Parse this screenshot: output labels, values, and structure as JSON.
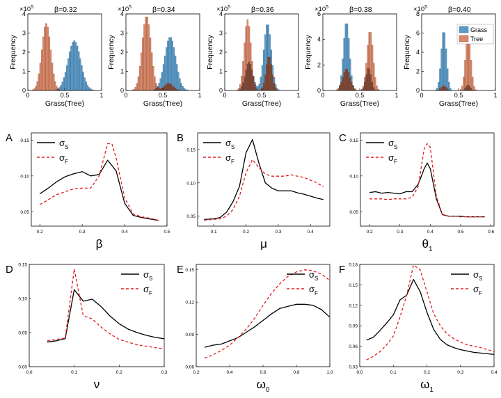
{
  "histograms": {
    "ylabel": "Frequency",
    "xlabel": "Grass(Tree)",
    "legend": {
      "grass": "Grass",
      "tree": "Tree"
    },
    "colors": {
      "grass": "#5b9bc8",
      "tree": "#d9896a",
      "overlap": "#6b3a2a"
    }
  },
  "chart_data": [
    {
      "type": "histogram",
      "title": "β=0.32",
      "scale_base": "×10",
      "scale_exp": "5",
      "xlim": [
        0,
        1
      ],
      "xticks": [
        0,
        0.5,
        1
      ],
      "xticklabels": [
        "0",
        "0.5",
        "1"
      ],
      "ylim": [
        0,
        4
      ],
      "yticks": [
        0,
        1,
        2,
        3,
        4
      ],
      "yticklabels": [
        "0",
        "1",
        "2",
        "3",
        "4"
      ],
      "series": [
        {
          "name": "Grass",
          "components": [
            {
              "mu": 0.63,
              "sd": 0.085,
              "peak": 2.6
            }
          ]
        },
        {
          "name": "Tree",
          "components": [
            {
              "mu": 0.25,
              "sd": 0.06,
              "peak": 3.5
            }
          ]
        }
      ]
    },
    {
      "type": "histogram",
      "title": "β=0.34",
      "scale_base": "×10",
      "scale_exp": "5",
      "xlim": [
        0,
        1
      ],
      "xticks": [
        0,
        0.5,
        1
      ],
      "xticklabels": [
        "0",
        "0.5",
        "1"
      ],
      "ylim": [
        0,
        4
      ],
      "yticks": [
        0,
        1,
        2,
        3,
        4
      ],
      "yticklabels": [
        "0",
        "1",
        "2",
        "3",
        "4"
      ],
      "series": [
        {
          "name": "Grass",
          "components": [
            {
              "mu": 0.6,
              "sd": 0.075,
              "peak": 2.8
            }
          ]
        },
        {
          "name": "Tree",
          "components": [
            {
              "mu": 0.28,
              "sd": 0.06,
              "peak": 3.9
            },
            {
              "mu": 0.58,
              "sd": 0.06,
              "peak": 0.38
            }
          ]
        }
      ]
    },
    {
      "type": "histogram",
      "title": "β=0.36",
      "scale_base": "×10",
      "scale_exp": "5",
      "xlim": [
        0,
        1
      ],
      "xticks": [
        0,
        0.5,
        1
      ],
      "xticklabels": [
        "0",
        "0.5",
        "1"
      ],
      "ylim": [
        0,
        4
      ],
      "yticks": [
        0,
        1,
        2,
        3,
        4
      ],
      "yticklabels": [
        "0",
        "1",
        "2",
        "3",
        "4"
      ],
      "series": [
        {
          "name": "Grass",
          "components": [
            {
              "mu": 0.58,
              "sd": 0.05,
              "peak": 3.5
            },
            {
              "mu": 0.33,
              "sd": 0.05,
              "peak": 1.5
            }
          ]
        },
        {
          "name": "Tree",
          "components": [
            {
              "mu": 0.31,
              "sd": 0.045,
              "peak": 3.7
            },
            {
              "mu": 0.6,
              "sd": 0.04,
              "peak": 1.8
            }
          ]
        }
      ]
    },
    {
      "type": "histogram",
      "title": "β=0.38",
      "scale_base": "×10",
      "scale_exp": "5",
      "xlim": [
        0,
        1
      ],
      "xticks": [
        0,
        0.5,
        1
      ],
      "xticklabels": [
        "0",
        "0.5",
        "1"
      ],
      "ylim": [
        0,
        6
      ],
      "yticks": [
        0,
        2,
        4,
        6
      ],
      "yticklabels": [
        "0",
        "2",
        "4",
        "6"
      ],
      "series": [
        {
          "name": "Grass",
          "components": [
            {
              "mu": 0.32,
              "sd": 0.04,
              "peak": 5.4
            },
            {
              "mu": 0.62,
              "sd": 0.035,
              "peak": 1.8
            }
          ]
        },
        {
          "name": "Tree",
          "components": [
            {
              "mu": 0.64,
              "sd": 0.04,
              "peak": 4.7
            },
            {
              "mu": 0.32,
              "sd": 0.05,
              "peak": 1.7
            }
          ]
        }
      ]
    },
    {
      "type": "histogram",
      "title": "β=0.40",
      "scale_base": "×10",
      "scale_exp": "5",
      "xlim": [
        0,
        1
      ],
      "xticks": [
        0,
        0.5,
        1
      ],
      "xticklabels": [
        "0",
        "0.5",
        "1"
      ],
      "ylim": [
        0,
        8
      ],
      "yticks": [
        0,
        2,
        4,
        6,
        8
      ],
      "yticklabels": [
        "0",
        "2",
        "4",
        "6",
        "8"
      ],
      "series": [
        {
          "name": "Grass",
          "components": [
            {
              "mu": 0.3,
              "sd": 0.035,
              "peak": 6.3
            },
            {
              "mu": 0.63,
              "sd": 0.03,
              "peak": 0.6
            }
          ]
        },
        {
          "name": "Tree",
          "components": [
            {
              "mu": 0.63,
              "sd": 0.035,
              "peak": 6.1
            },
            {
              "mu": 0.3,
              "sd": 0.035,
              "peak": 0.5
            }
          ]
        }
      ],
      "legend": [
        "Grass",
        "Tree"
      ]
    },
    {
      "type": "line",
      "panel": "A",
      "xlabel": "β",
      "xlabel_sub": "",
      "xlim": [
        0.18,
        0.5
      ],
      "xticks": [
        0.2,
        0.3,
        0.4,
        0.5
      ],
      "xticklabels": [
        "0.2",
        "0.3",
        "0.4",
        "0.5"
      ],
      "ylim": [
        0.03,
        0.16
      ],
      "yticks": [
        0.05,
        0.1,
        0.15
      ],
      "yticklabels": [
        "0.05",
        "0.10",
        "0.15"
      ],
      "legend": [
        {
          "name": "σ",
          "sub": "S"
        },
        {
          "name": "σ",
          "sub": "F"
        }
      ],
      "series": [
        {
          "name": "σS",
          "x": [
            0.2,
            0.22,
            0.24,
            0.26,
            0.28,
            0.3,
            0.32,
            0.34,
            0.36,
            0.38,
            0.4,
            0.42,
            0.44,
            0.46,
            0.48
          ],
          "y": [
            0.075,
            0.083,
            0.092,
            0.099,
            0.103,
            0.106,
            0.1,
            0.102,
            0.122,
            0.107,
            0.062,
            0.045,
            0.042,
            0.04,
            0.038
          ]
        },
        {
          "name": "σF",
          "x": [
            0.2,
            0.22,
            0.24,
            0.26,
            0.28,
            0.3,
            0.32,
            0.34,
            0.36,
            0.37,
            0.38,
            0.4,
            0.42,
            0.44,
            0.46,
            0.48
          ],
          "y": [
            0.06,
            0.067,
            0.074,
            0.078,
            0.082,
            0.083,
            0.083,
            0.1,
            0.145,
            0.145,
            0.125,
            0.07,
            0.047,
            0.043,
            0.041,
            0.038
          ]
        }
      ]
    },
    {
      "type": "line",
      "panel": "B",
      "xlabel": "μ",
      "xlabel_sub": "",
      "xlim": [
        0.05,
        0.46
      ],
      "xticks": [
        0.1,
        0.2,
        0.3,
        0.4
      ],
      "xticklabels": [
        "0.1",
        "0.2",
        "0.3",
        "0.4"
      ],
      "ylim": [
        0.035,
        0.175
      ],
      "yticks": [
        0.05,
        0.1,
        0.15
      ],
      "yticklabels": [
        "0.05",
        "0.10",
        "0.15"
      ],
      "legend": [
        {
          "name": "σ",
          "sub": "S"
        },
        {
          "name": "σ",
          "sub": "F"
        }
      ],
      "series": [
        {
          "name": "σS",
          "x": [
            0.07,
            0.1,
            0.12,
            0.14,
            0.16,
            0.18,
            0.2,
            0.22,
            0.24,
            0.26,
            0.28,
            0.3,
            0.32,
            0.34,
            0.36,
            0.38,
            0.4,
            0.42,
            0.44
          ],
          "y": [
            0.045,
            0.046,
            0.048,
            0.056,
            0.072,
            0.095,
            0.145,
            0.165,
            0.13,
            0.1,
            0.092,
            0.088,
            0.088,
            0.088,
            0.085,
            0.083,
            0.08,
            0.077,
            0.075
          ]
        },
        {
          "name": "σF",
          "x": [
            0.07,
            0.1,
            0.12,
            0.14,
            0.16,
            0.18,
            0.2,
            0.22,
            0.24,
            0.26,
            0.28,
            0.3,
            0.32,
            0.34,
            0.36,
            0.38,
            0.4,
            0.42,
            0.44
          ],
          "y": [
            0.044,
            0.045,
            0.046,
            0.05,
            0.06,
            0.08,
            0.115,
            0.135,
            0.123,
            0.113,
            0.11,
            0.11,
            0.11,
            0.112,
            0.11,
            0.108,
            0.104,
            0.1,
            0.094
          ]
        }
      ]
    },
    {
      "type": "line",
      "panel": "C",
      "xlabel": "θ",
      "xlabel_sub": "1",
      "xlim": [
        0.17,
        0.61
      ],
      "xticks": [
        0.2,
        0.3,
        0.4,
        0.5,
        0.6
      ],
      "xticklabels": [
        "0.2",
        "0.3",
        "0.4",
        "0.5",
        "0.6"
      ],
      "ylim": [
        0.03,
        0.16
      ],
      "yticks": [
        0.05,
        0.1,
        0.15
      ],
      "yticklabels": [
        "0.05",
        "0.10",
        "0.15"
      ],
      "legend": [
        {
          "name": "σ",
          "sub": "S"
        },
        {
          "name": "σ",
          "sub": "F"
        }
      ],
      "series": [
        {
          "name": "σS",
          "x": [
            0.2,
            0.22,
            0.24,
            0.26,
            0.28,
            0.3,
            0.32,
            0.34,
            0.36,
            0.38,
            0.39,
            0.4,
            0.42,
            0.44,
            0.46,
            0.48,
            0.5,
            0.52,
            0.54,
            0.56,
            0.58
          ],
          "y": [
            0.077,
            0.078,
            0.076,
            0.077,
            0.076,
            0.075,
            0.078,
            0.078,
            0.088,
            0.11,
            0.118,
            0.11,
            0.068,
            0.046,
            0.044,
            0.044,
            0.044,
            0.043,
            0.043,
            0.043,
            0.043
          ]
        },
        {
          "name": "σF",
          "x": [
            0.2,
            0.22,
            0.24,
            0.26,
            0.28,
            0.3,
            0.32,
            0.34,
            0.36,
            0.38,
            0.39,
            0.4,
            0.42,
            0.44,
            0.46,
            0.48,
            0.5,
            0.52,
            0.54,
            0.56,
            0.58
          ],
          "y": [
            0.068,
            0.068,
            0.068,
            0.067,
            0.068,
            0.068,
            0.068,
            0.07,
            0.085,
            0.138,
            0.145,
            0.14,
            0.072,
            0.046,
            0.044,
            0.044,
            0.043,
            0.043,
            0.043,
            0.043,
            0.043
          ]
        }
      ]
    },
    {
      "type": "line",
      "panel": "D",
      "xlabel": "ν",
      "xlabel_sub": "",
      "xlim": [
        0,
        0.3
      ],
      "xticks": [
        0,
        0.1,
        0.2,
        0.3
      ],
      "xticklabels": [
        "0.0",
        "0.1",
        "0.2",
        "0.3"
      ],
      "ylim": [
        0,
        0.15
      ],
      "yticks": [
        0,
        0.05,
        0.1,
        0.15
      ],
      "yticklabels": [
        "0.00",
        "0.05",
        "0.10",
        "0.15"
      ],
      "legend": [
        {
          "name": "σ",
          "sub": "S"
        },
        {
          "name": "σ",
          "sub": "F"
        }
      ],
      "series": [
        {
          "name": "σS",
          "x": [
            0.04,
            0.06,
            0.08,
            0.1,
            0.12,
            0.14,
            0.16,
            0.18,
            0.2,
            0.22,
            0.24,
            0.26,
            0.28,
            0.3
          ],
          "y": [
            0.036,
            0.038,
            0.041,
            0.113,
            0.096,
            0.099,
            0.088,
            0.074,
            0.063,
            0.055,
            0.05,
            0.046,
            0.043,
            0.041
          ]
        },
        {
          "name": "σF",
          "x": [
            0.04,
            0.06,
            0.08,
            0.1,
            0.12,
            0.14,
            0.16,
            0.18,
            0.2,
            0.22,
            0.24,
            0.26,
            0.28,
            0.3
          ],
          "y": [
            0.038,
            0.04,
            0.042,
            0.143,
            0.075,
            0.07,
            0.058,
            0.048,
            0.04,
            0.036,
            0.032,
            0.03,
            0.028,
            0.026
          ]
        }
      ]
    },
    {
      "type": "line",
      "panel": "E",
      "xlabel": "ω",
      "xlabel_sub": "0",
      "xlim": [
        0.2,
        1.0
      ],
      "xticks": [
        0.2,
        0.4,
        0.6,
        0.8,
        1.0
      ],
      "xticklabels": [
        "0.2",
        "0.4",
        "0.6",
        "0.8",
        "1.0"
      ],
      "ylim": [
        0.06,
        0.155
      ],
      "yticks": [
        0.06,
        0.09,
        0.12,
        0.15
      ],
      "yticklabels": [
        "0.06",
        "0.09",
        "0.12",
        "0.15"
      ],
      "legend": [
        {
          "name": "σ",
          "sub": "S"
        },
        {
          "name": "σ",
          "sub": "F"
        }
      ],
      "series": [
        {
          "name": "σS",
          "x": [
            0.25,
            0.3,
            0.35,
            0.4,
            0.45,
            0.5,
            0.55,
            0.6,
            0.65,
            0.7,
            0.75,
            0.8,
            0.85,
            0.9,
            0.95,
            1.0
          ],
          "y": [
            0.078,
            0.08,
            0.081,
            0.084,
            0.087,
            0.092,
            0.097,
            0.103,
            0.109,
            0.114,
            0.116,
            0.118,
            0.118,
            0.117,
            0.113,
            0.106
          ]
        },
        {
          "name": "σF",
          "x": [
            0.25,
            0.3,
            0.35,
            0.4,
            0.45,
            0.5,
            0.55,
            0.6,
            0.65,
            0.7,
            0.75,
            0.8,
            0.85,
            0.9,
            0.95,
            1.0
          ],
          "y": [
            0.068,
            0.071,
            0.075,
            0.08,
            0.087,
            0.095,
            0.105,
            0.117,
            0.128,
            0.137,
            0.144,
            0.148,
            0.15,
            0.149,
            0.146,
            0.14
          ]
        }
      ]
    },
    {
      "type": "line",
      "panel": "F",
      "xlabel": "ω",
      "xlabel_sub": "1",
      "xlim": [
        0,
        0.4
      ],
      "xticks": [
        0,
        0.1,
        0.2,
        0.3,
        0.4
      ],
      "xticklabels": [
        "0.0",
        "0.1",
        "0.2",
        "0.3",
        "0.4"
      ],
      "ylim": [
        0.03,
        0.18
      ],
      "yticks": [
        0.03,
        0.06,
        0.09,
        0.12,
        0.15,
        0.18
      ],
      "yticklabels": [
        "0.03",
        "0.06",
        "0.09",
        "0.12",
        "0.15",
        "0.18"
      ],
      "legend": [
        {
          "name": "σ",
          "sub": "S"
        },
        {
          "name": "σ",
          "sub": "F"
        }
      ],
      "series": [
        {
          "name": "σS",
          "x": [
            0.02,
            0.04,
            0.06,
            0.08,
            0.1,
            0.12,
            0.14,
            0.16,
            0.18,
            0.2,
            0.22,
            0.24,
            0.26,
            0.28,
            0.3,
            0.32,
            0.34,
            0.36,
            0.38,
            0.4
          ],
          "y": [
            0.069,
            0.073,
            0.083,
            0.094,
            0.106,
            0.128,
            0.135,
            0.158,
            0.14,
            0.11,
            0.085,
            0.07,
            0.062,
            0.058,
            0.055,
            0.053,
            0.051,
            0.05,
            0.049,
            0.048
          ]
        },
        {
          "name": "σF",
          "x": [
            0.02,
            0.04,
            0.06,
            0.08,
            0.1,
            0.12,
            0.14,
            0.16,
            0.18,
            0.2,
            0.22,
            0.24,
            0.26,
            0.28,
            0.3,
            0.32,
            0.34,
            0.36,
            0.38,
            0.4
          ],
          "y": [
            0.04,
            0.045,
            0.052,
            0.062,
            0.075,
            0.103,
            0.135,
            0.179,
            0.172,
            0.14,
            0.108,
            0.09,
            0.078,
            0.071,
            0.066,
            0.062,
            0.06,
            0.058,
            0.055,
            0.052
          ]
        }
      ]
    }
  ]
}
